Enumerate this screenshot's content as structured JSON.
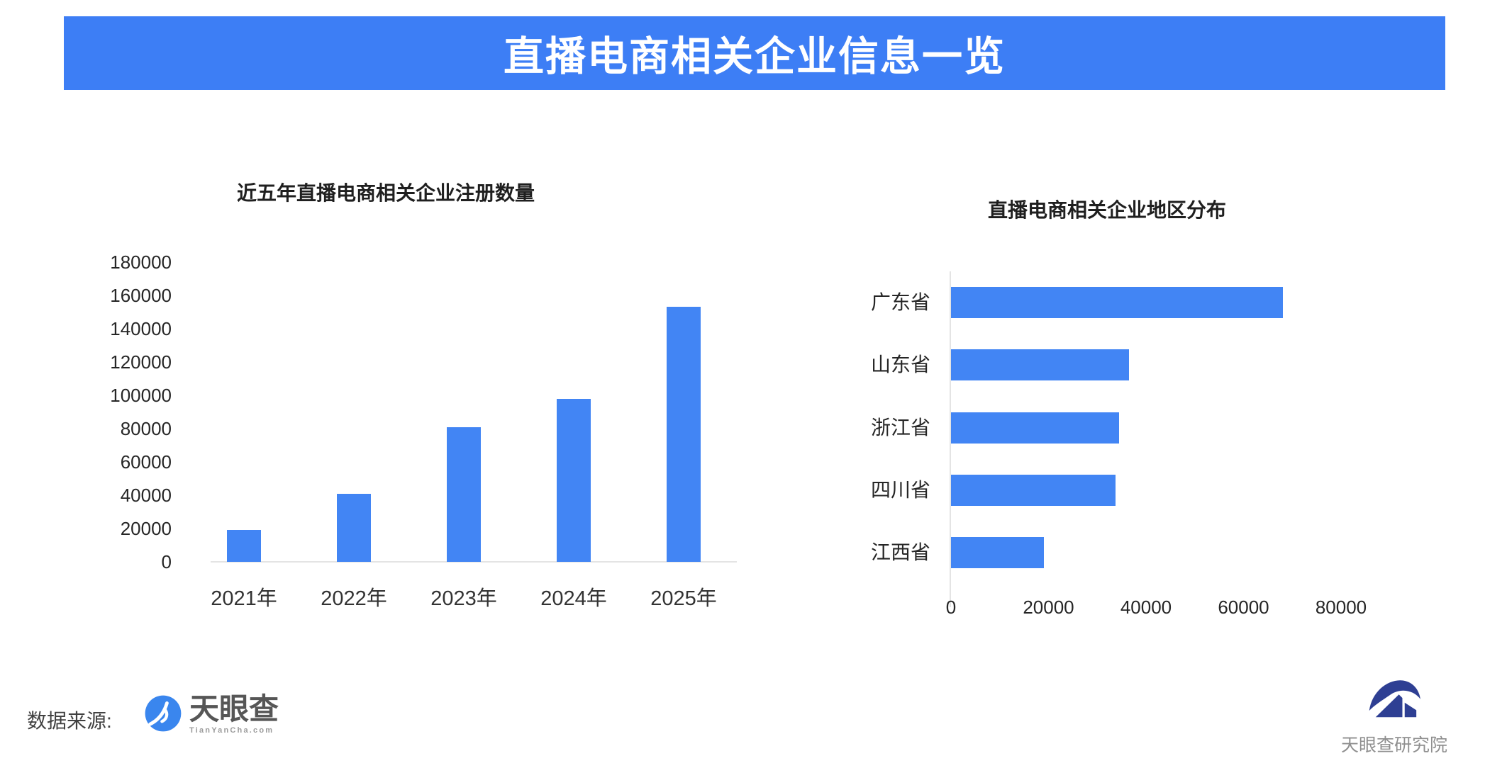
{
  "banner": {
    "title": "直播电商相关企业信息一览",
    "bg_color": "#3d7ef5",
    "text_color": "#ffffff"
  },
  "chart_data": [
    {
      "type": "bar",
      "orientation": "vertical",
      "title": "近五年直播电商相关企业注册数量",
      "categories": [
        "2021年",
        "2022年",
        "2023年",
        "2024年",
        "2025年"
      ],
      "values": [
        19000,
        41000,
        81000,
        98000,
        153000
      ],
      "ylabel": "",
      "xlabel": "",
      "ylim": [
        0,
        180000
      ],
      "y_ticks": [
        180000,
        160000,
        140000,
        120000,
        100000,
        80000,
        60000,
        40000,
        20000,
        0
      ],
      "grid": false,
      "bar_color": "#4285f4",
      "axis_line_color": "#e4e4e4"
    },
    {
      "type": "bar",
      "orientation": "horizontal",
      "title": "直播电商相关企业地区分布",
      "categories": [
        "广东省",
        "山东省",
        "浙江省",
        "四川省",
        "江西省"
      ],
      "values": [
        68000,
        36500,
        34500,
        33800,
        19000
      ],
      "xlabel": "",
      "ylabel": "",
      "xlim": [
        0,
        80000
      ],
      "x_ticks": [
        0,
        20000,
        40000,
        60000,
        80000
      ],
      "grid": false,
      "bar_color": "#4285f4",
      "axis_line_color": "#e4e4e4"
    }
  ],
  "footer": {
    "source_label": "数据来源:",
    "tianyancha": {
      "name": "天眼查",
      "domain": "TianYanCha.com",
      "icon": "tianyancha-swirl-icon",
      "icon_color": "#3a86ee"
    },
    "research": {
      "name": "天眼查研究院",
      "icon": "tianyancha-research-emblem-icon",
      "icon_color": "#2e3f93"
    }
  }
}
